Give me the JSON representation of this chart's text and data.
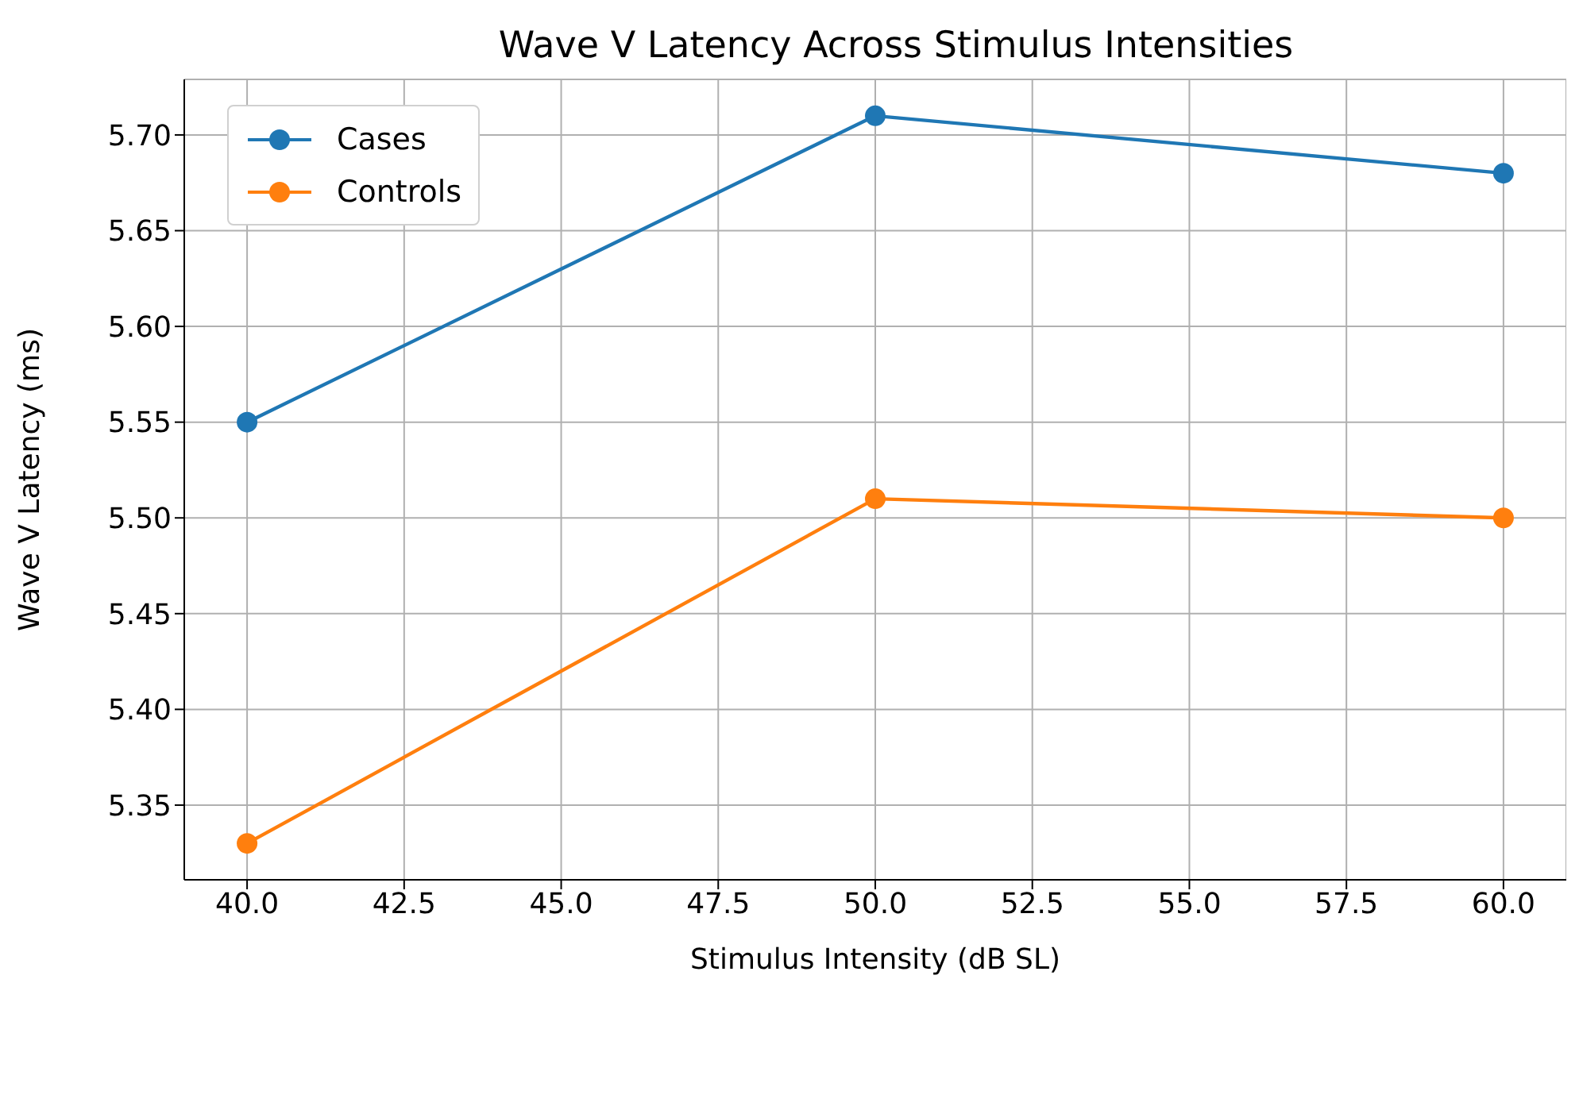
{
  "chart_data": {
    "type": "line",
    "title": "Wave V Latency Across Stimulus Intensities",
    "xlabel": "Stimulus Intensity (dB SL)",
    "ylabel": "Wave V Latency (ms)",
    "x": [
      40,
      50,
      60
    ],
    "series": [
      {
        "name": "Cases",
        "color": "#1f77b4",
        "values": [
          5.55,
          5.71,
          5.68
        ]
      },
      {
        "name": "Controls",
        "color": "#ff7f0e",
        "values": [
          5.33,
          5.51,
          5.5
        ]
      }
    ],
    "xlim": [
      39,
      61
    ],
    "xticks": [
      {
        "value": 40,
        "label": "40.0"
      },
      {
        "value": 42.5,
        "label": "42.5"
      },
      {
        "value": 45,
        "label": "45.0"
      },
      {
        "value": 47.5,
        "label": "47.5"
      },
      {
        "value": 50,
        "label": "50.0"
      },
      {
        "value": 52.5,
        "label": "52.5"
      },
      {
        "value": 55,
        "label": "55.0"
      },
      {
        "value": 57.5,
        "label": "57.5"
      },
      {
        "value": 60,
        "label": "60.0"
      }
    ],
    "ylim": [
      5.311,
      5.729
    ],
    "yticks": [
      {
        "value": 5.35,
        "label": "5.35"
      },
      {
        "value": 5.4,
        "label": "5.40"
      },
      {
        "value": 5.45,
        "label": "5.45"
      },
      {
        "value": 5.5,
        "label": "5.50"
      },
      {
        "value": 5.55,
        "label": "5.55"
      },
      {
        "value": 5.6,
        "label": "5.60"
      },
      {
        "value": 5.65,
        "label": "5.65"
      },
      {
        "value": 5.7,
        "label": "5.70"
      }
    ],
    "grid": true,
    "legend": "top left",
    "marker": "circle",
    "line_style": "solid"
  }
}
